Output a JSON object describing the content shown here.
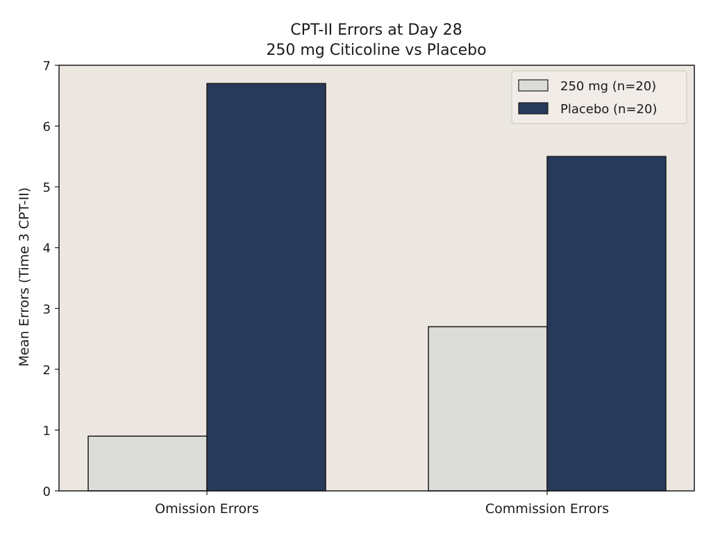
{
  "chart_data": {
    "type": "bar",
    "title": "CPT-II Errors at Day 28",
    "subtitle": "250 mg Citicoline vs Placebo",
    "xlabel": "",
    "ylabel": "Mean Errors (Time 3 CPT-II)",
    "categories": [
      "Omission Errors",
      "Commission Errors"
    ],
    "series": [
      {
        "name": "250 mg (n=20)",
        "values": [
          0.9,
          2.7
        ],
        "color": "#dcdcd8"
      },
      {
        "name": "Placebo (n=20)",
        "values": [
          6.7,
          5.5
        ],
        "color": "#283a59"
      }
    ],
    "ylim": [
      0,
      7
    ],
    "yticks": [
      0,
      1,
      2,
      3,
      4,
      5,
      6,
      7
    ],
    "grid": false,
    "legend_position": "top-right",
    "plot_background": "#ede7e1",
    "edge_color": "#1a1a1a"
  }
}
